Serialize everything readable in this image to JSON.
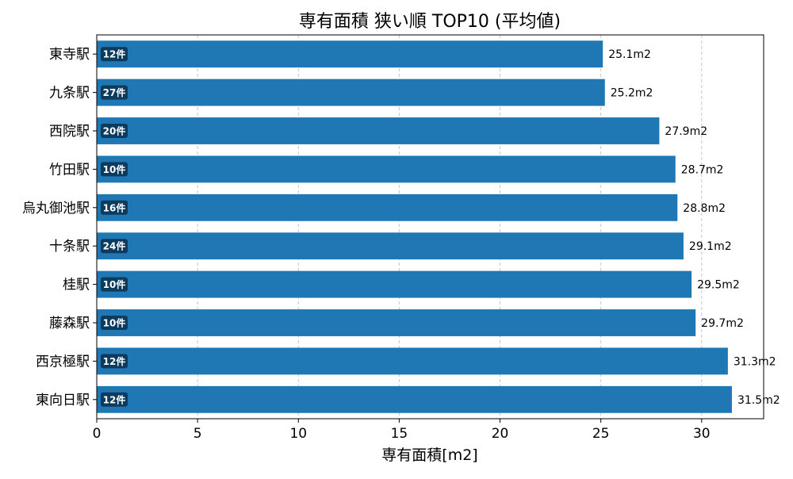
{
  "chart_data": {
    "type": "bar",
    "orientation": "horizontal",
    "title": "専有面積 狭い順 TOP10 (平均値)",
    "xlabel": "専有面積[m2]",
    "ylabel": "",
    "xlim": [
      0,
      33.075
    ],
    "xticks": [
      0,
      5,
      10,
      15,
      20,
      25,
      30
    ],
    "grid": "vertical-dashed",
    "bar_color": "#1f77b4",
    "badge_color": "#0d3b5e",
    "value_suffix": "m2",
    "count_suffix": "件",
    "categories": [
      "東寺駅",
      "九条駅",
      "西院駅",
      "竹田駅",
      "烏丸御池駅",
      "十条駅",
      "桂駅",
      "藤森駅",
      "西京極駅",
      "東向日駅"
    ],
    "values": [
      25.1,
      25.2,
      27.9,
      28.7,
      28.8,
      29.1,
      29.5,
      29.7,
      31.3,
      31.5
    ],
    "counts": [
      12,
      27,
      20,
      10,
      16,
      24,
      10,
      10,
      12,
      12
    ],
    "value_labels": [
      "25.1m2",
      "25.2m2",
      "27.9m2",
      "28.7m2",
      "28.8m2",
      "29.1m2",
      "29.5m2",
      "29.7m2",
      "31.3m2",
      "31.5m2"
    ],
    "count_labels": [
      "12件",
      "27件",
      "20件",
      "10件",
      "16件",
      "24件",
      "10件",
      "10件",
      "12件",
      "12件"
    ]
  }
}
